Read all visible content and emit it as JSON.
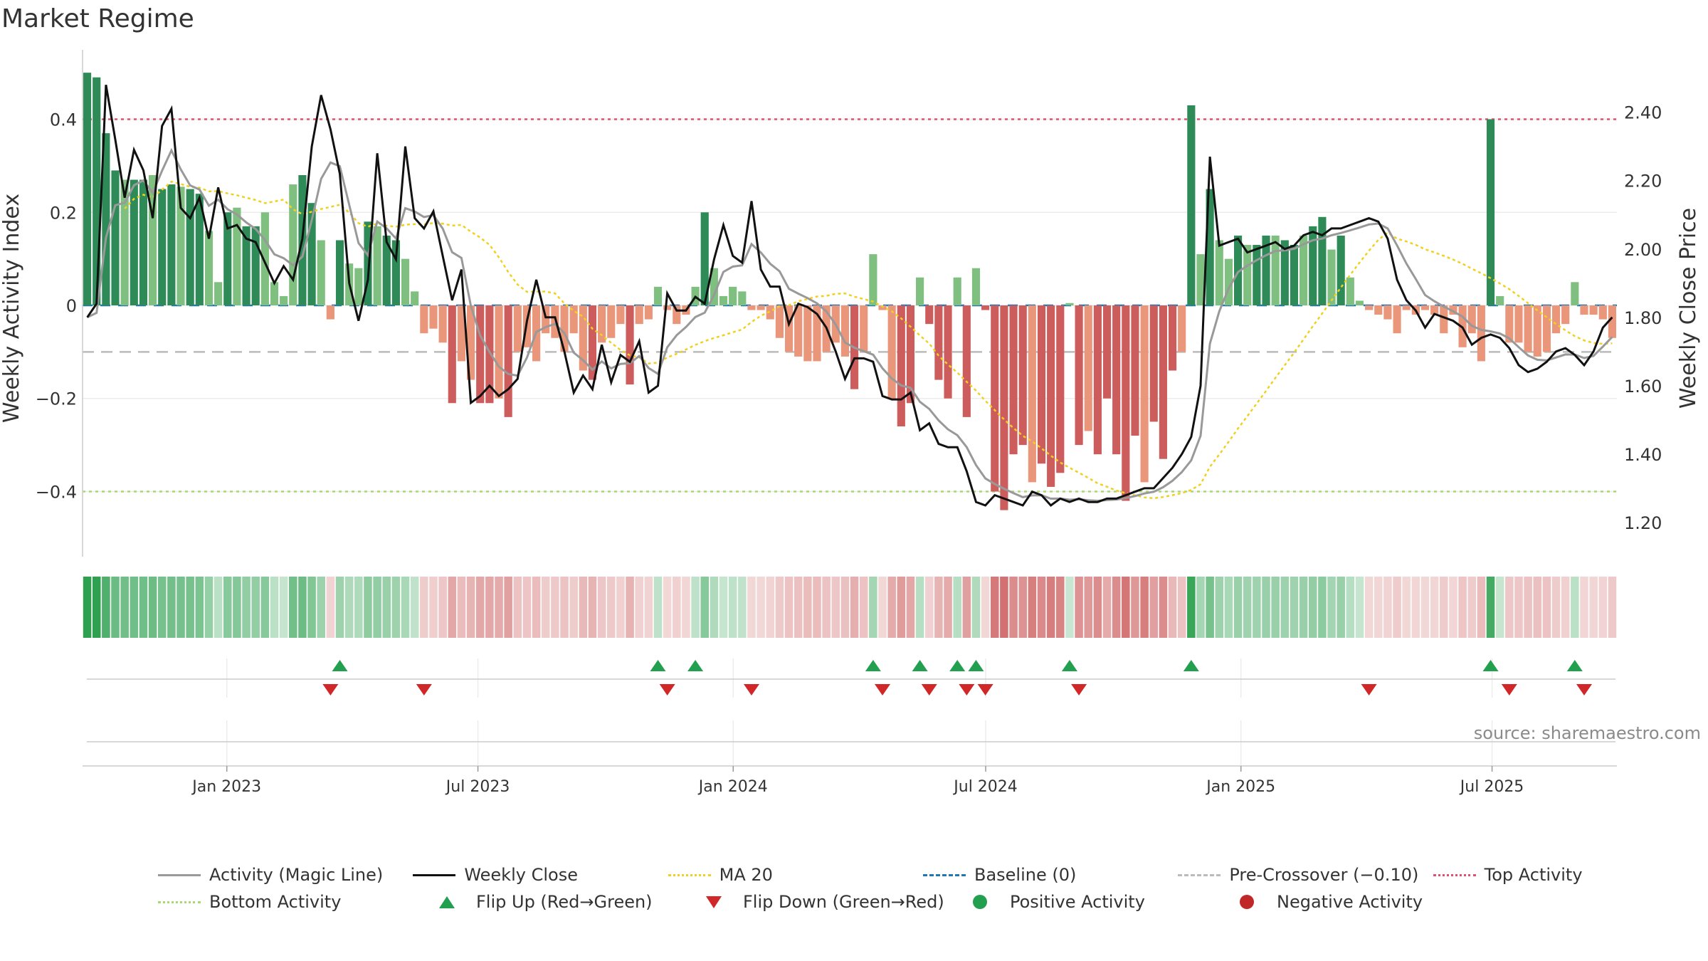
{
  "title": "Market Regime",
  "source": "source: sharemaestro.com",
  "colors": {
    "pos_strong": "#2e8b57",
    "pos_light": "#7fbf7f",
    "neg_strong": "#cd5c5c",
    "neg_light": "#e9967a",
    "magic": "#999999",
    "close": "#111111",
    "ma": "#f0d020",
    "baseline": "#1f77b4",
    "pre": "#bbbbbb",
    "top": "#e05070",
    "bottom": "#a8d870",
    "flip_up": "#22a050",
    "flip_down": "#d02828"
  },
  "chart_data": {
    "type": "bar",
    "title": "Market Regime",
    "ylabel": "Weekly Activity Index",
    "y2label": "Weekly Close Price",
    "x_ticks": [
      "Jan 2023",
      "Jul 2023",
      "Jan 2024",
      "Jul 2024",
      "Jan 2025",
      "Jul 2025"
    ],
    "y_ticks": [
      "0.4",
      "0.2",
      "0",
      "−0.2",
      "−0.4"
    ],
    "y_tick_values": [
      0.4,
      0.2,
      0,
      -0.2,
      -0.4
    ],
    "y2_ticks": [
      "2.40",
      "2.20",
      "2.00",
      "1.80",
      "1.60",
      "1.40",
      "1.20"
    ],
    "y2_tick_values": [
      2.4,
      2.2,
      2.0,
      1.8,
      1.6,
      1.4,
      1.2
    ],
    "ylim": [
      -0.54,
      0.54
    ],
    "y2lim": [
      1.1,
      2.57
    ],
    "x_start": "2022-09-19",
    "x_end": "2025-09-29",
    "reference_lines": {
      "top": 0.4,
      "bottom": -0.4,
      "pre_crossover": -0.1,
      "baseline": 0
    },
    "activity": [
      0.5,
      0.49,
      0.37,
      0.29,
      0.27,
      0.27,
      0.27,
      0.28,
      0.25,
      0.26,
      0.255,
      0.25,
      0.24,
      0.16,
      0.05,
      0.2,
      0.21,
      0.17,
      0.17,
      0.2,
      0.05,
      0.02,
      0.26,
      0.28,
      0.22,
      0.14,
      -0.03,
      0.14,
      0.09,
      0.08,
      0.18,
      0.17,
      0.15,
      0.14,
      0.1,
      0.03,
      -0.06,
      -0.05,
      -0.08,
      -0.21,
      -0.12,
      -0.16,
      -0.21,
      -0.21,
      -0.2,
      -0.24,
      -0.1,
      -0.09,
      -0.12,
      -0.06,
      -0.07,
      -0.1,
      -0.06,
      -0.14,
      -0.16,
      -0.08,
      -0.07,
      -0.04,
      -0.17,
      -0.04,
      -0.03,
      0.04,
      -0.01,
      -0.04,
      -0.02,
      0.04,
      0.2,
      0.08,
      0.02,
      0.04,
      0.03,
      -0.01,
      -0.01,
      -0.03,
      -0.07,
      -0.1,
      -0.11,
      -0.12,
      -0.12,
      -0.1,
      -0.08,
      -0.11,
      -0.18,
      -0.1,
      0.11,
      -0.01,
      -0.2,
      -0.26,
      -0.21,
      0.06,
      -0.04,
      -0.16,
      -0.2,
      0.06,
      -0.24,
      0.08,
      -0.01,
      -0.4,
      -0.44,
      -0.32,
      -0.3,
      -0.38,
      -0.34,
      -0.39,
      -0.36,
      0.005,
      -0.3,
      -0.27,
      -0.32,
      -0.2,
      -0.32,
      -0.42,
      -0.28,
      -0.38,
      -0.25,
      -0.33,
      -0.14,
      -0.1,
      0.43,
      0.11,
      0.25,
      0.14,
      0.1,
      0.15,
      0.13,
      0.13,
      0.15,
      0.15,
      0.14,
      0.13,
      0.15,
      0.17,
      0.19,
      0.12,
      0.15,
      0.06,
      0.01,
      -0.01,
      -0.02,
      -0.03,
      -0.06,
      -0.01,
      -0.02,
      -0.01,
      -0.02,
      -0.06,
      -0.02,
      -0.09,
      -0.06,
      -0.12,
      0.4,
      0.02,
      -0.08,
      -0.08,
      -0.1,
      -0.11,
      -0.1,
      -0.06,
      -0.04,
      0.05,
      -0.02,
      -0.02,
      -0.03,
      -0.07
    ],
    "close": [
      1.8,
      1.84,
      2.48,
      2.32,
      2.15,
      2.29,
      2.23,
      2.09,
      2.36,
      2.41,
      2.12,
      2.09,
      2.15,
      2.03,
      2.18,
      2.06,
      2.07,
      2.03,
      2.02,
      1.96,
      1.9,
      1.95,
      1.91,
      2.03,
      2.3,
      2.45,
      2.35,
      2.22,
      1.9,
      1.79,
      1.91,
      2.28,
      2.02,
      1.97,
      2.3,
      2.09,
      2.06,
      2.11,
      1.98,
      1.85,
      1.94,
      1.55,
      1.57,
      1.6,
      1.57,
      1.59,
      1.62,
      1.79,
      1.91,
      1.8,
      1.8,
      1.7,
      1.58,
      1.63,
      1.59,
      1.72,
      1.61,
      1.69,
      1.67,
      1.73,
      1.58,
      1.6,
      1.87,
      1.82,
      1.82,
      1.86,
      1.84,
      1.97,
      2.07,
      1.98,
      1.96,
      2.14,
      1.94,
      1.89,
      1.89,
      1.78,
      1.84,
      1.83,
      1.81,
      1.77,
      1.7,
      1.62,
      1.68,
      1.68,
      1.67,
      1.57,
      1.56,
      1.56,
      1.58,
      1.47,
      1.49,
      1.43,
      1.42,
      1.42,
      1.35,
      1.26,
      1.25,
      1.28,
      1.27,
      1.26,
      1.25,
      1.29,
      1.28,
      1.25,
      1.27,
      1.26,
      1.27,
      1.26,
      1.26,
      1.27,
      1.27,
      1.28,
      1.29,
      1.3,
      1.3,
      1.33,
      1.36,
      1.4,
      1.45,
      1.6,
      2.27,
      2.01,
      2.02,
      2.03,
      1.99,
      2.0,
      2.01,
      2.02,
      2.0,
      2.01,
      2.04,
      2.05,
      2.04,
      2.06,
      2.06,
      2.07,
      2.08,
      2.09,
      2.08,
      2.03,
      1.91,
      1.85,
      1.82,
      1.77,
      1.81,
      1.8,
      1.79,
      1.77,
      1.72,
      1.74,
      1.75,
      1.74,
      1.71,
      1.66,
      1.64,
      1.65,
      1.67,
      1.7,
      1.71,
      1.69,
      1.66,
      1.7,
      1.77,
      1.8,
      1.84,
      1.89,
      1.83,
      1.85,
      1.86,
      1.81
    ]
  },
  "legend": [
    {
      "label": "Activity (Magic Line)",
      "sym": "line",
      "color": "#999999"
    },
    {
      "label": "Weekly Close",
      "sym": "line",
      "color": "#111111"
    },
    {
      "label": "MA 20",
      "sym": "dot",
      "color": "#f0d020"
    },
    {
      "label": "Baseline (0)",
      "sym": "dash",
      "color": "#1f77b4"
    },
    {
      "label": "Pre-Crossover (−0.10)",
      "sym": "dash",
      "color": "#bbbbbb"
    },
    {
      "label": "Top Activity",
      "sym": "dot",
      "color": "#e05070"
    },
    {
      "label": "Bottom Activity",
      "sym": "dot",
      "color": "#a8d870"
    },
    {
      "label": "Flip Up (Red→Green)",
      "sym": "tri-up",
      "color": "#22a050"
    },
    {
      "label": "Flip Down (Green→Red)",
      "sym": "tri-down",
      "color": "#d02828"
    },
    {
      "label": "Positive Activity",
      "sym": "circle",
      "color": "#22a050"
    },
    {
      "label": "Negative Activity",
      "sym": "circle",
      "color": "#c02828"
    }
  ]
}
